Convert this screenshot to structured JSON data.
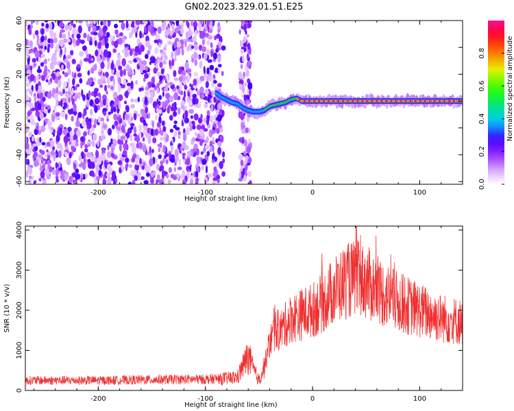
{
  "title": "GN02.2023.329.01.51.E25",
  "chart_data": [
    {
      "type": "heatmap",
      "xlabel": "Height of straight line (km)",
      "ylabel": "Frequency (Hz)",
      "xlim": [
        -268,
        140
      ],
      "ylim": [
        -62,
        60
      ],
      "xticks": [
        -200,
        -100,
        0,
        100
      ],
      "yticks": [
        -60,
        -40,
        -20,
        0,
        20,
        40,
        60
      ],
      "noise_region": [
        [
          -268,
          -83
        ],
        [
          -68,
          -58
        ]
      ],
      "signal_trace": {
        "x": [
          -90,
          -85,
          -80,
          -75,
          -70,
          -65,
          -60,
          -55,
          -50,
          -45,
          -40,
          -35,
          -30,
          -25,
          -20,
          -15,
          -10,
          -5,
          0,
          20,
          40,
          60,
          80,
          100,
          120,
          140
        ],
        "y": [
          6,
          3,
          1,
          -1,
          -2,
          -5,
          -7,
          -8,
          -8,
          -7,
          -4,
          -3,
          -2,
          -1,
          1,
          2,
          0,
          0,
          0,
          0,
          0,
          0,
          0,
          0,
          0,
          0
        ]
      },
      "colorbar": {
        "label": "Normalized spectral amplitude",
        "range": [
          0,
          1
        ],
        "ticks": [
          "0.0",
          "0.2",
          "0.4",
          "0.6",
          "0.8"
        ]
      }
    },
    {
      "type": "line",
      "xlabel": "Height of straight line (km)",
      "ylabel": "SNR (10 * v/v)",
      "xlim": [
        -268,
        140
      ],
      "ylim": [
        0,
        4100
      ],
      "xticks": [
        -200,
        -100,
        0,
        100
      ],
      "yticks": [
        0,
        1000,
        2000,
        3000,
        4000
      ],
      "color": "#f03030",
      "series": [
        {
          "x": [
            -268,
            -250,
            -200,
            -150,
            -100,
            -80,
            -70,
            -65,
            -60,
            -55,
            -50,
            -45,
            -40,
            -35,
            -30,
            -20,
            -10,
            0,
            10,
            20,
            30,
            40,
            50,
            60,
            80,
            100,
            120,
            140
          ],
          "values": [
            250,
            250,
            250,
            270,
            280,
            300,
            330,
            600,
            850,
            500,
            250,
            600,
            1200,
            1500,
            1500,
            1800,
            1900,
            2000,
            2200,
            2500,
            2700,
            2800,
            2700,
            2500,
            2200,
            2000,
            1800,
            1700
          ]
        }
      ]
    }
  ]
}
